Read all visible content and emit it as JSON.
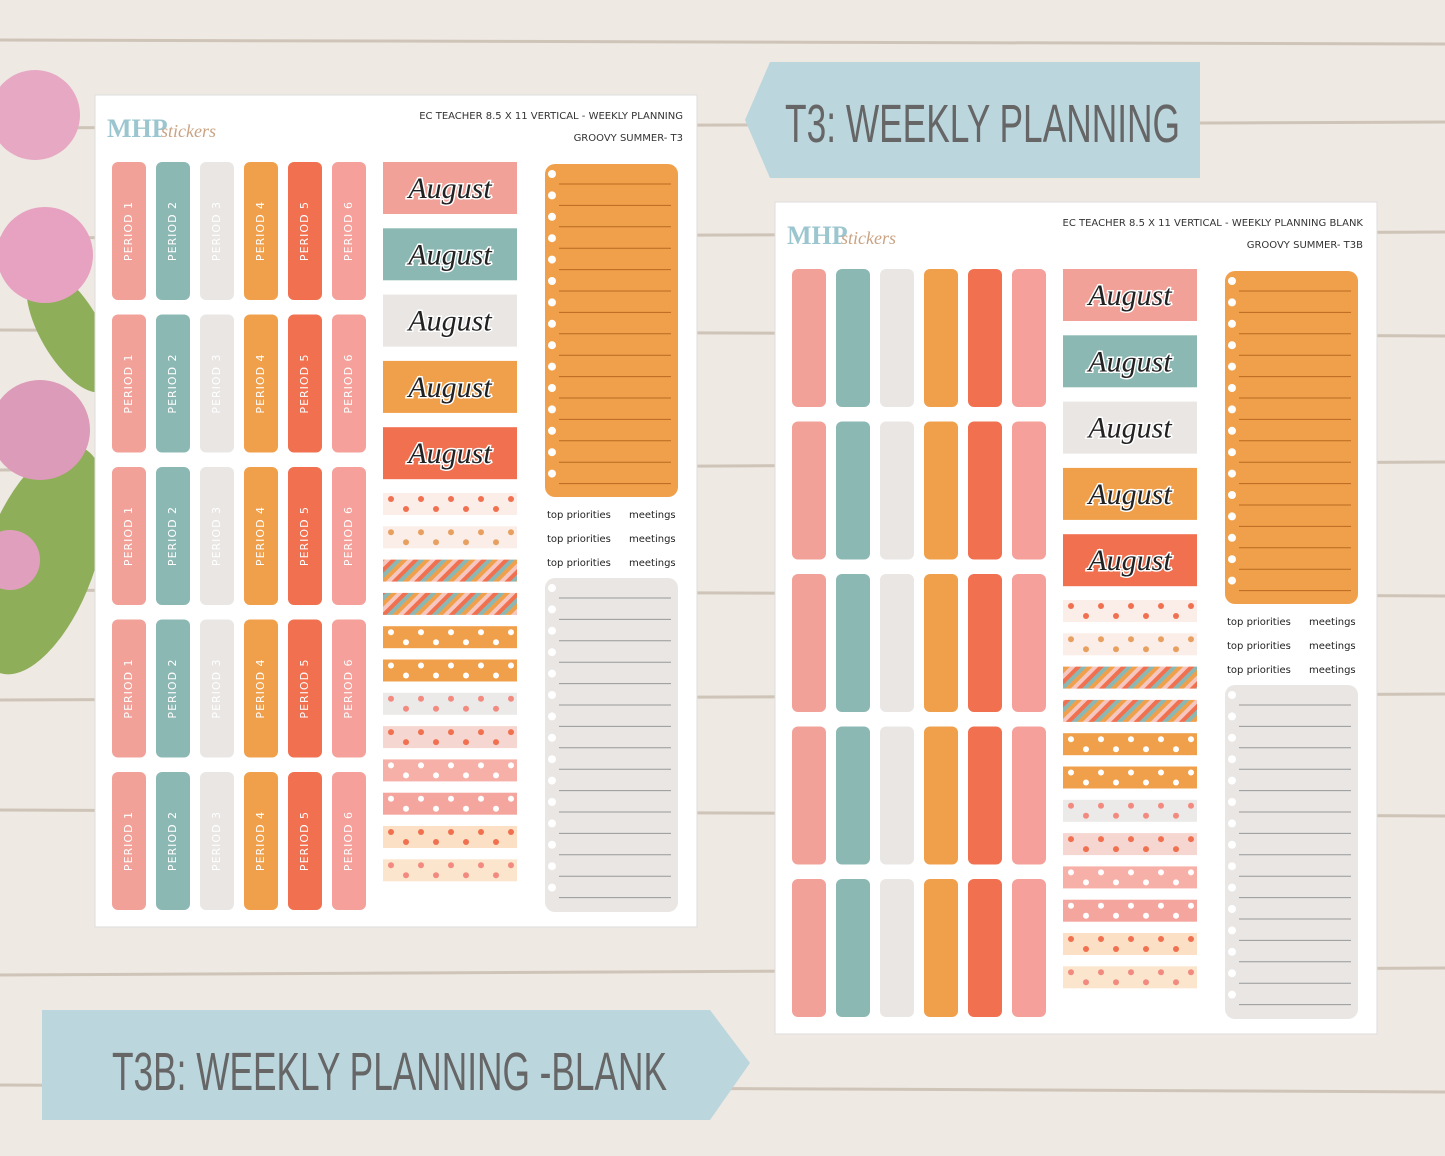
{
  "banners": {
    "t3": "T3: WEEKLY PLANNING",
    "t3b": "T3B: WEEKLY PLANNING -BLANK"
  },
  "sheets": [
    {
      "logo": {
        "brand": "MHP",
        "sub": "stickers"
      },
      "header": {
        "line1": "EC TEACHER 8.5 X 11 VERTICAL - WEEKLY PLANNING",
        "line2": "GROOVY SUMMER- T3"
      },
      "period_rows": [
        [
          "PERIOD 1",
          "PERIOD 2",
          "PERIOD 3",
          "PERIOD 4",
          "PERIOD 5",
          "PERIOD 6"
        ],
        [
          "PERIOD 1",
          "PERIOD 2",
          "PERIOD 3",
          "PERIOD 4",
          "PERIOD 5",
          "PERIOD 6"
        ],
        [
          "PERIOD 1",
          "PERIOD 2",
          "PERIOD 3",
          "PERIOD 4",
          "PERIOD 5",
          "PERIOD 6"
        ],
        [
          "PERIOD 1",
          "PERIOD 2",
          "PERIOD 3",
          "PERIOD 4",
          "PERIOD 5",
          "PERIOD 6"
        ],
        [
          "PERIOD 1",
          "PERIOD 2",
          "PERIOD 3",
          "PERIOD 4",
          "PERIOD 5",
          "PERIOD 6"
        ]
      ],
      "month_labels": [
        "August",
        "August",
        "August",
        "August",
        "August"
      ],
      "list_headings": [
        [
          "top priorities",
          "meetings"
        ],
        [
          "top priorities",
          "meetings"
        ],
        [
          "top priorities",
          "meetings"
        ]
      ]
    },
    {
      "logo": {
        "brand": "MHP",
        "sub": "stickers"
      },
      "header": {
        "line1": "EC TEACHER 8.5 X 11 VERTICAL - WEEKLY PLANNING BLANK",
        "line2": "GROOVY SUMMER- T3B"
      },
      "month_labels": [
        "August",
        "August",
        "August",
        "August",
        "August"
      ],
      "list_headings": [
        [
          "top priorities",
          "meetings"
        ],
        [
          "top priorities",
          "meetings"
        ],
        [
          "top priorities",
          "meetings"
        ]
      ]
    }
  ]
}
